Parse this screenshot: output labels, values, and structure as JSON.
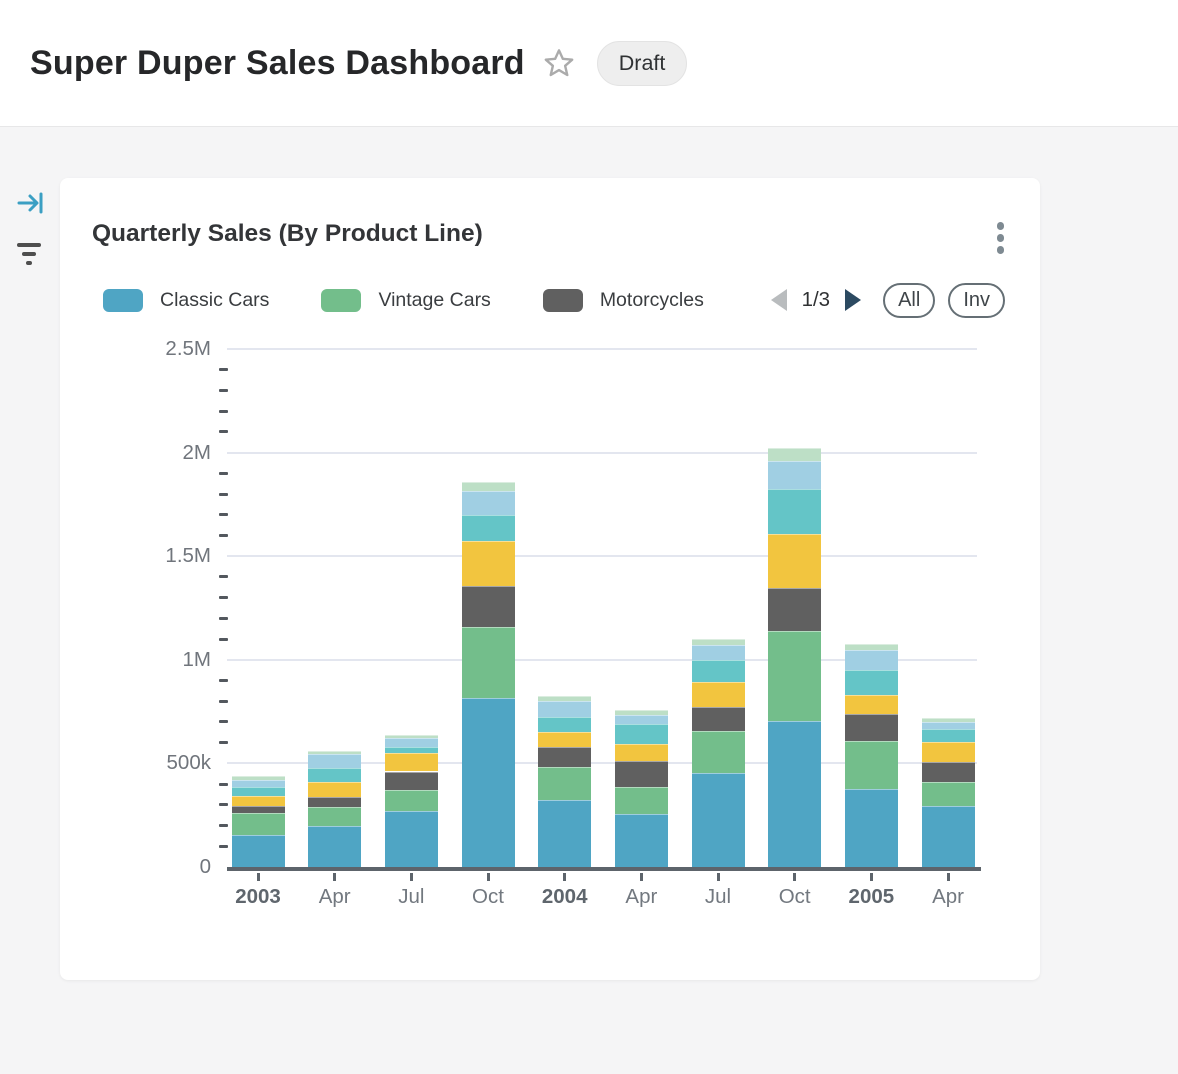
{
  "header": {
    "title": "Super Duper Sales Dashboard",
    "badge": "Draft"
  },
  "side_toolbar": {
    "collapse_icon": "arrow-to-bar",
    "filter_icon": "filter-lines",
    "collapse_color": "#3b9fc3"
  },
  "card": {
    "title": "Quarterly Sales (By Product Line)",
    "menu_icon": "kebab-vertical",
    "legend": {
      "items": [
        {
          "label": "Classic Cars",
          "color": "#4FA5C4"
        },
        {
          "label": "Vintage Cars",
          "color": "#73BE8B"
        },
        {
          "label": "Motorcycles",
          "color": "#606060"
        }
      ],
      "pagination": {
        "page": "1/3",
        "prev_icon": "triangle-left",
        "next_icon": "triangle-right"
      },
      "buttons": [
        {
          "label": "All"
        },
        {
          "label": "Inv"
        }
      ]
    }
  },
  "chart_data": {
    "type": "bar",
    "stacked": true,
    "title": "Quarterly Sales (By Product Line)",
    "grid": true,
    "legend_position": "top",
    "categories": [
      "2003",
      "Apr",
      "Jul",
      "Oct",
      "2004",
      "Apr",
      "Jul",
      "Oct",
      "2005",
      "Apr"
    ],
    "category_bold": [
      true,
      false,
      false,
      false,
      true,
      false,
      false,
      false,
      true,
      false
    ],
    "y_axis": {
      "min": 0,
      "max": 2500000,
      "tick_labels": [
        "2.5M",
        "2M",
        "1.5M",
        "1M",
        "500k",
        "0"
      ],
      "minor_ticks_per_interval": 4
    },
    "series": [
      {
        "name": "Classic Cars",
        "color": "#4FA5C4",
        "values": [
          155000,
          200000,
          268000,
          815000,
          324000,
          255000,
          456000,
          707000,
          377000,
          296000
        ]
      },
      {
        "name": "Vintage Cars",
        "color": "#73BE8B",
        "values": [
          105000,
          88000,
          105000,
          342000,
          161000,
          133000,
          201000,
          430000,
          233000,
          116000
        ]
      },
      {
        "name": "Motorcycles",
        "color": "#606060",
        "values": [
          36000,
          52000,
          88000,
          198000,
          92000,
          124000,
          116000,
          211000,
          129000,
          94000
        ]
      },
      {
        "name": "Unlabeled series (yellow)",
        "color": "#F2C53F",
        "values": [
          48000,
          72000,
          88000,
          217000,
          77000,
          84000,
          122000,
          257000,
          92000,
          97000
        ]
      },
      {
        "name": "Unlabeled series (teal)",
        "color": "#64C5C7",
        "values": [
          42000,
          64000,
          32000,
          129000,
          68000,
          94000,
          103000,
          221000,
          122000,
          64000
        ]
      },
      {
        "name": "Unlabeled series (light blue)",
        "color": "#A0CFE3",
        "values": [
          36000,
          70000,
          40000,
          116000,
          77000,
          45000,
          74000,
          132000,
          95000,
          32000
        ]
      },
      {
        "name": "Unlabeled series (pale green)",
        "color": "#BDDFC6",
        "values": [
          19000,
          15000,
          16000,
          42000,
          27000,
          23000,
          28000,
          65000,
          29000,
          19000
        ]
      }
    ]
  }
}
